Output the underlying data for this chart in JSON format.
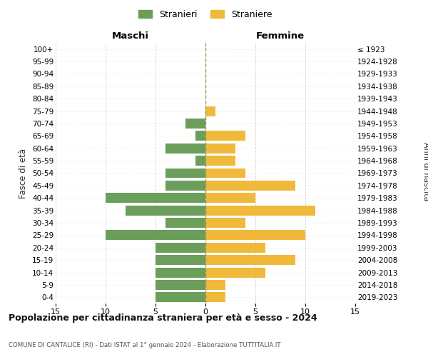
{
  "age_groups": [
    "0-4",
    "5-9",
    "10-14",
    "15-19",
    "20-24",
    "25-29",
    "30-34",
    "35-39",
    "40-44",
    "45-49",
    "50-54",
    "55-59",
    "60-64",
    "65-69",
    "70-74",
    "75-79",
    "80-84",
    "85-89",
    "90-94",
    "95-99",
    "100+"
  ],
  "birth_years": [
    "2019-2023",
    "2014-2018",
    "2009-2013",
    "2004-2008",
    "1999-2003",
    "1994-1998",
    "1989-1993",
    "1984-1988",
    "1979-1983",
    "1974-1978",
    "1969-1973",
    "1964-1968",
    "1959-1963",
    "1954-1958",
    "1949-1953",
    "1944-1948",
    "1939-1943",
    "1934-1938",
    "1929-1933",
    "1924-1928",
    "≤ 1923"
  ],
  "maschi": [
    5,
    5,
    5,
    5,
    5,
    10,
    4,
    8,
    10,
    4,
    4,
    1,
    4,
    1,
    2,
    0,
    0,
    0,
    0,
    0,
    0
  ],
  "femmine": [
    2,
    2,
    6,
    9,
    6,
    10,
    4,
    11,
    5,
    9,
    4,
    3,
    3,
    4,
    0,
    1,
    0,
    0,
    0,
    0,
    0
  ],
  "maschi_color": "#6a9e5a",
  "femmine_color": "#f0b93a",
  "background_color": "#ffffff",
  "grid_color": "#cccccc",
  "title": "Popolazione per cittadinanza straniera per età e sesso - 2024",
  "subtitle": "COMUNE DI CANTALICE (RI) - Dati ISTAT al 1° gennaio 2024 - Elaborazione TUTTITALIA.IT",
  "xlabel_left": "Maschi",
  "xlabel_right": "Femmine",
  "ylabel": "Fasce di età",
  "ylabel_right": "Anni di nascita",
  "legend_maschi": "Stranieri",
  "legend_femmine": "Straniere",
  "xlim": 15,
  "dashed_line_color": "#999966"
}
